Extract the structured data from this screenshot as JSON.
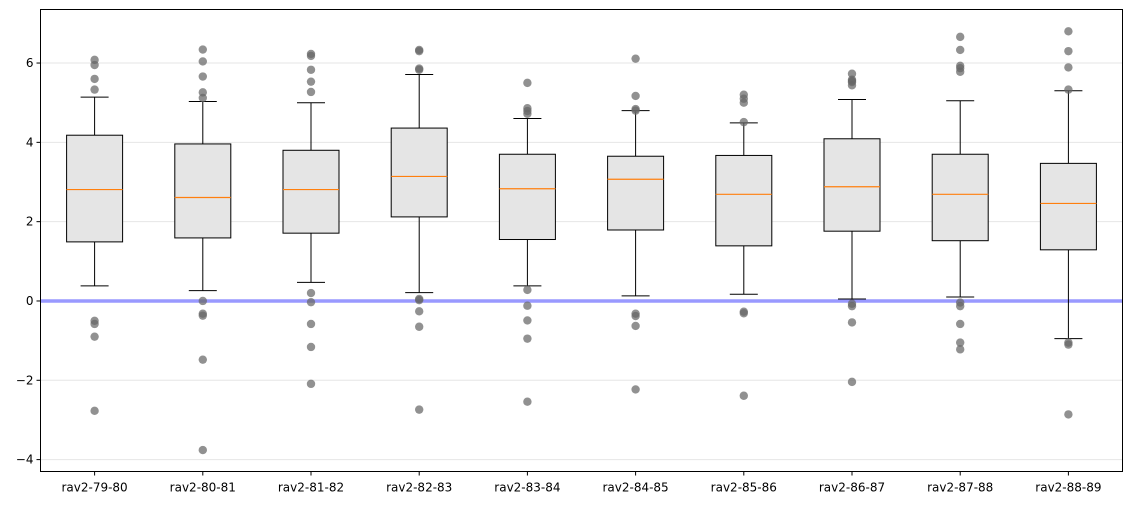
{
  "chart_data": {
    "type": "box",
    "title": "",
    "xlabel": "",
    "ylabel": "",
    "categories": [
      "rav2-79-80",
      "rav2-80-81",
      "rav2-81-82",
      "rav2-82-83",
      "rav2-83-84",
      "rav2-84-85",
      "rav2-85-86",
      "rav2-86-87",
      "rav2-87-88",
      "rav2-88-89"
    ],
    "ylim": [
      -4.3,
      7.35
    ],
    "yticks": [
      -4,
      -2,
      0,
      2,
      4,
      6
    ],
    "grid": "horizontal",
    "reference_line": {
      "y": 0,
      "color": "#9999ff"
    },
    "box_fill": "#e5e5e5",
    "median_color": "#ff7f0e",
    "outlier_color": "#666666",
    "boxes": [
      {
        "name": "rav2-79-80",
        "whisker_low": 0.38,
        "q1": 1.49,
        "median": 2.81,
        "q3": 4.18,
        "whisker_high": 5.14,
        "outliers": [
          6.08,
          5.95,
          5.6,
          5.33,
          -0.5,
          -0.58,
          -0.9,
          -2.77
        ]
      },
      {
        "name": "rav2-80-81",
        "whisker_low": 0.26,
        "q1": 1.59,
        "median": 2.61,
        "q3": 3.96,
        "whisker_high": 5.03,
        "outliers": [
          6.34,
          6.04,
          5.66,
          5.26,
          5.12,
          0.0,
          -0.32,
          -0.37,
          -1.48,
          -3.76
        ]
      },
      {
        "name": "rav2-81-82",
        "whisker_low": 0.47,
        "q1": 1.71,
        "median": 2.81,
        "q3": 3.8,
        "whisker_high": 5.0,
        "outliers": [
          6.23,
          6.18,
          5.83,
          5.53,
          5.27,
          0.2,
          -0.03,
          -0.58,
          -1.16,
          -2.09
        ]
      },
      {
        "name": "rav2-82-83",
        "whisker_low": 0.21,
        "q1": 2.12,
        "median": 3.14,
        "q3": 4.36,
        "whisker_high": 5.71,
        "outliers": [
          6.33,
          6.3,
          5.86,
          5.83,
          0.05,
          0.02,
          -0.26,
          -0.65,
          -2.74
        ]
      },
      {
        "name": "rav2-83-84",
        "whisker_low": 0.38,
        "q1": 1.55,
        "median": 2.83,
        "q3": 3.7,
        "whisker_high": 4.6,
        "outliers": [
          5.5,
          4.86,
          4.79,
          4.72,
          0.28,
          -0.12,
          -0.49,
          -0.95,
          -2.54
        ]
      },
      {
        "name": "rav2-84-85",
        "whisker_low": 0.13,
        "q1": 1.79,
        "median": 3.07,
        "q3": 3.65,
        "whisker_high": 4.8,
        "outliers": [
          6.11,
          5.17,
          4.84,
          4.8,
          -0.32,
          -0.38,
          -0.63,
          -2.23
        ]
      },
      {
        "name": "rav2-85-86",
        "whisker_low": 0.17,
        "q1": 1.39,
        "median": 2.69,
        "q3": 3.67,
        "whisker_high": 4.49,
        "outliers": [
          5.2,
          5.1,
          5.0,
          4.51,
          -0.27,
          -0.31,
          -2.39
        ]
      },
      {
        "name": "rav2-86-87",
        "whisker_low": 0.05,
        "q1": 1.76,
        "median": 2.88,
        "q3": 4.09,
        "whisker_high": 5.08,
        "outliers": [
          5.73,
          5.58,
          5.55,
          5.52,
          5.44,
          -0.07,
          -0.13,
          -0.54,
          -2.04
        ]
      },
      {
        "name": "rav2-87-88",
        "whisker_low": 0.1,
        "q1": 1.52,
        "median": 2.69,
        "q3": 3.7,
        "whisker_high": 5.05,
        "outliers": [
          6.66,
          6.33,
          5.93,
          5.87,
          5.78,
          -0.04,
          -0.13,
          -0.58,
          -1.05,
          -1.22
        ]
      },
      {
        "name": "rav2-88-89",
        "whisker_low": -0.95,
        "q1": 1.29,
        "median": 2.46,
        "q3": 3.47,
        "whisker_high": 5.3,
        "outliers": [
          6.8,
          6.3,
          5.89,
          5.33,
          -1.05,
          -1.1,
          -2.86
        ]
      }
    ]
  }
}
